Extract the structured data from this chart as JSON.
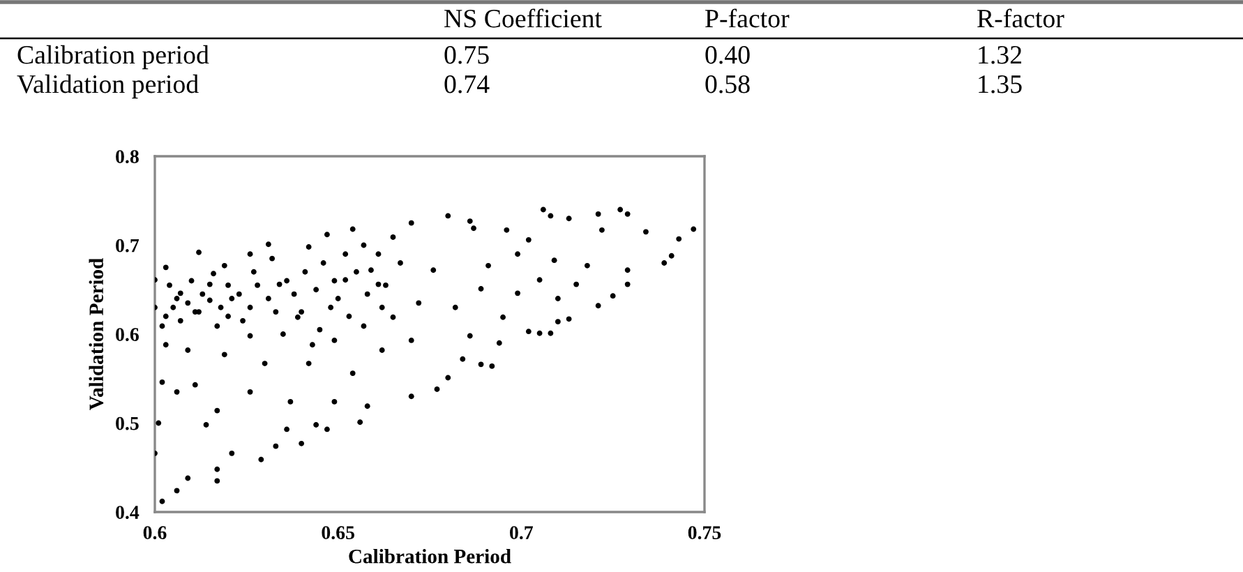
{
  "chart_data": [
    {
      "type": "other",
      "categories": [
        "NS Coefficient",
        "P-factor",
        "R-factor"
      ],
      "y_categories": [
        "Calibration period",
        "Validation period"
      ],
      "cell_labels": [
        [
          "0.75",
          "0.40",
          "1.32"
        ],
        [
          "0.74",
          "0.58",
          "1.35"
        ]
      ]
    },
    {
      "type": "scatter",
      "xlabel": "Calibration Period",
      "ylabel": "Validation Period",
      "color": "#000000",
      "marker": "circle",
      "x": [
        0.602,
        0.6,
        0.601,
        0.606,
        0.609,
        0.617,
        0.617,
        0.621,
        0.614,
        0.617,
        0.629,
        0.633,
        0.636,
        0.64,
        0.644,
        0.647,
        0.656,
        0.649,
        0.602,
        0.606,
        0.611,
        0.626,
        0.637,
        0.603,
        0.609,
        0.619,
        0.63,
        0.642,
        0.654,
        0.662,
        0.6,
        0.6,
        0.603,
        0.602,
        0.607,
        0.611,
        0.615,
        0.612,
        0.619,
        0.621,
        0.626,
        0.631,
        0.634,
        0.639,
        0.642,
        0.647,
        0.654,
        0.652,
        0.659,
        0.657,
        0.626,
        0.617,
        0.648,
        0.643,
        0.649,
        0.662,
        0.747,
        0.743,
        0.739,
        0.741,
        0.734,
        0.727,
        0.729,
        0.721,
        0.722,
        0.729,
        0.729,
        0.725,
        0.721,
        0.718,
        0.713,
        0.706,
        0.708,
        0.71,
        0.713,
        0.708,
        0.705,
        0.702,
        0.71,
        0.705,
        0.709,
        0.702,
        0.696,
        0.699,
        0.695,
        0.694,
        0.692,
        0.689,
        0.687,
        0.686,
        0.68,
        0.67,
        0.68,
        0.677,
        0.67,
        0.658,
        0.684,
        0.686,
        0.682,
        0.676,
        0.665,
        0.665,
        0.67,
        0.691,
        0.689,
        0.715,
        0.699,
        0.672,
        0.661,
        0.603,
        0.605,
        0.607,
        0.609,
        0.612,
        0.615,
        0.618,
        0.62,
        0.623,
        0.626,
        0.628,
        0.631,
        0.633,
        0.636,
        0.638,
        0.641,
        0.644,
        0.646,
        0.649,
        0.652,
        0.655,
        0.658,
        0.661,
        0.604,
        0.606,
        0.61,
        0.613,
        0.616,
        0.62,
        0.624,
        0.627,
        0.632,
        0.635,
        0.64,
        0.645,
        0.65,
        0.653,
        0.657,
        0.663,
        0.667
      ],
      "values": [
        0.412,
        0.466,
        0.5,
        0.424,
        0.438,
        0.435,
        0.448,
        0.466,
        0.498,
        0.514,
        0.459,
        0.474,
        0.493,
        0.477,
        0.498,
        0.493,
        0.501,
        0.524,
        0.546,
        0.535,
        0.543,
        0.535,
        0.524,
        0.588,
        0.582,
        0.577,
        0.567,
        0.567,
        0.556,
        0.582,
        0.63,
        0.661,
        0.675,
        0.609,
        0.646,
        0.625,
        0.656,
        0.692,
        0.677,
        0.64,
        0.69,
        0.701,
        0.656,
        0.619,
        0.698,
        0.712,
        0.718,
        0.661,
        0.672,
        0.609,
        0.598,
        0.609,
        0.63,
        0.588,
        0.593,
        0.63,
        0.718,
        0.707,
        0.68,
        0.688,
        0.715,
        0.74,
        0.735,
        0.735,
        0.717,
        0.672,
        0.656,
        0.643,
        0.632,
        0.677,
        0.73,
        0.74,
        0.733,
        0.614,
        0.617,
        0.601,
        0.601,
        0.603,
        0.64,
        0.661,
        0.683,
        0.706,
        0.717,
        0.646,
        0.619,
        0.59,
        0.564,
        0.566,
        0.719,
        0.727,
        0.733,
        0.725,
        0.551,
        0.538,
        0.53,
        0.519,
        0.572,
        0.598,
        0.63,
        0.672,
        0.709,
        0.619,
        0.593,
        0.677,
        0.651,
        0.656,
        0.69,
        0.635,
        0.656,
        0.62,
        0.63,
        0.615,
        0.635,
        0.625,
        0.638,
        0.63,
        0.62,
        0.645,
        0.63,
        0.655,
        0.64,
        0.625,
        0.66,
        0.645,
        0.67,
        0.65,
        0.68,
        0.66,
        0.69,
        0.67,
        0.645,
        0.69,
        0.655,
        0.64,
        0.66,
        0.645,
        0.668,
        0.655,
        0.615,
        0.67,
        0.685,
        0.6,
        0.625,
        0.605,
        0.64,
        0.62,
        0.7,
        0.655,
        0.68
      ],
      "xlim": [
        0.6,
        0.75
      ],
      "ylim": [
        0.4,
        0.8
      ],
      "xticks": [
        0.6,
        0.65,
        0.7,
        0.75
      ],
      "yticks": [
        0.4,
        0.5,
        0.6,
        0.7,
        0.8
      ]
    }
  ]
}
